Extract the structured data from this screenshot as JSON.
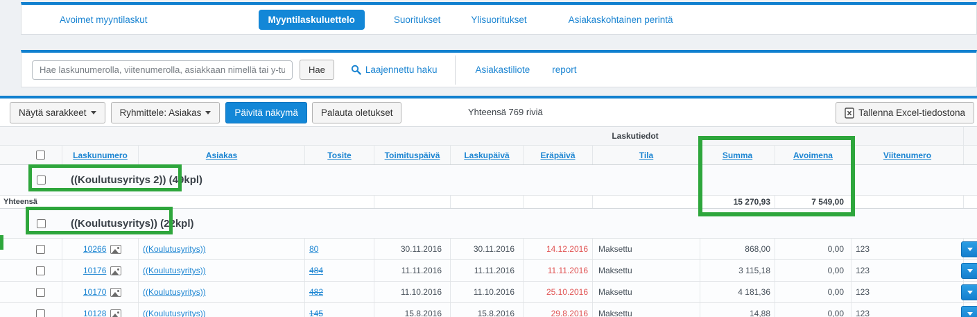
{
  "tabs": {
    "items": [
      {
        "label": "Avoimet myyntilaskut",
        "active": false
      },
      {
        "label": "Myyntilaskuluettelo",
        "active": true
      },
      {
        "label": "Suoritukset",
        "active": false
      },
      {
        "label": "Ylisuoritukset",
        "active": false
      },
      {
        "label": "Asiakaskohtainen perintä",
        "active": false
      }
    ]
  },
  "search": {
    "placeholder": "Hae laskunumerolla, viitenumerolla, asiakkaan nimellä tai y-tunnuksella",
    "button": "Hae",
    "advanced_link": "Laajennettu haku",
    "statement_link": "Asiakastiliote",
    "report_link": "report"
  },
  "toolbar": {
    "columns_button": "Näytä sarakkeet",
    "group_by_button": "Ryhmittele: Asiakas",
    "refresh_button": "Päivitä näkymä",
    "reset_button": "Palauta oletukset",
    "total_rows": "Yhteensä 769 riviä",
    "excel_button": "Tallenna Excel-tiedostona"
  },
  "table": {
    "group_header": "Laskutiedot",
    "headers": {
      "laskunumero": "Laskunumero",
      "asiakas": "Asiakas",
      "tosite": "Tosite",
      "toimituspaiva": "Toimituspäivä",
      "laskupaiva": "Laskupäivä",
      "erapaiva": "Eräpäivä",
      "tila": "Tila",
      "summa": "Summa",
      "avoimena": "Avoimena",
      "viitenumero": "Viitenumero"
    },
    "group1": {
      "label": "((Koulutusyritys 2)) (49kpl)"
    },
    "totals": {
      "label": "Yhteensä",
      "summa": "15 270,93",
      "avoimena": "7 549,00"
    },
    "group2": {
      "label": "((Koulutusyritys)) (22kpl)"
    },
    "rows": [
      {
        "laskunumero": "10266",
        "asiakas": "((Koulutusyritys))",
        "tosite": "80",
        "tosite_struck": false,
        "toimituspaiva": "30.11.2016",
        "laskupaiva": "30.11.2016",
        "erapaiva": "14.12.2016",
        "tila": "Maksettu",
        "summa": "868,00",
        "avoimena": "0,00",
        "viitenumero": "123"
      },
      {
        "laskunumero": "10176",
        "asiakas": "((Koulutusyritys))",
        "tosite": "484",
        "tosite_struck": true,
        "toimituspaiva": "11.11.2016",
        "laskupaiva": "11.11.2016",
        "erapaiva": "11.11.2016",
        "tila": "Maksettu",
        "summa": "3 115,18",
        "avoimena": "0,00",
        "viitenumero": "123"
      },
      {
        "laskunumero": "10170",
        "asiakas": "((Koulutusyritys))",
        "tosite": "482",
        "tosite_struck": true,
        "toimituspaiva": "11.10.2016",
        "laskupaiva": "11.10.2016",
        "erapaiva": "25.10.2016",
        "tila": "Maksettu",
        "summa": "4 181,36",
        "avoimena": "0,00",
        "viitenumero": "123"
      },
      {
        "laskunumero": "10128",
        "asiakas": "((Koulutusyritys))",
        "tosite": "145",
        "tosite_struck": true,
        "toimituspaiva": "15.8.2016",
        "laskupaiva": "15.8.2016",
        "erapaiva": "29.8.2016",
        "tila": "Maksettu",
        "summa": "14,88",
        "avoimena": "0,00",
        "viitenumero": "123"
      }
    ]
  },
  "colors": {
    "accent_blue": "#1387d7",
    "link_blue": "#1c85d2",
    "overdue_red": "#e05151",
    "annotation_green": "#2ea63c"
  }
}
